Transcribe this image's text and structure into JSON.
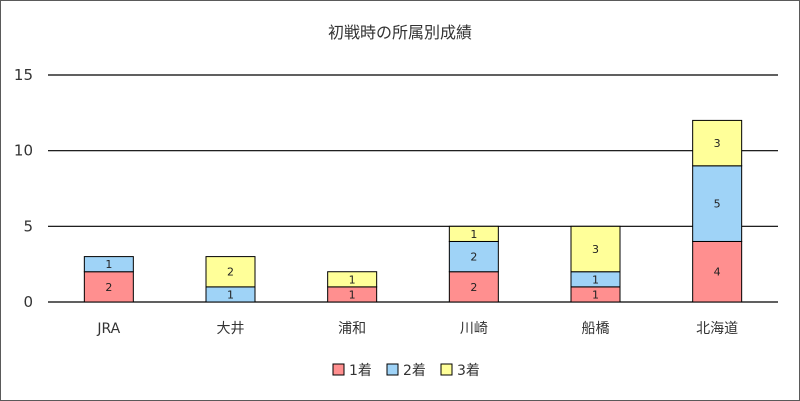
{
  "chart_data": {
    "type": "bar",
    "stacked": true,
    "title": "初戦時の所属別成績",
    "xlabel": "",
    "ylabel": "",
    "categories": [
      "JRA",
      "大井",
      "浦和",
      "川崎",
      "船橋",
      "北海道"
    ],
    "series": [
      {
        "name": "1着",
        "color": "#ff8f8f",
        "values": [
          2,
          0,
          1,
          2,
          1,
          4
        ]
      },
      {
        "name": "2着",
        "color": "#9fd3f7",
        "values": [
          1,
          1,
          0,
          2,
          1,
          5
        ]
      },
      {
        "name": "3着",
        "color": "#ffff99",
        "values": [
          0,
          2,
          1,
          1,
          3,
          3
        ]
      }
    ],
    "ylim": [
      0,
      15
    ],
    "yticks": [
      0,
      5,
      10,
      15
    ],
    "grid": true,
    "legend": "bottom"
  }
}
